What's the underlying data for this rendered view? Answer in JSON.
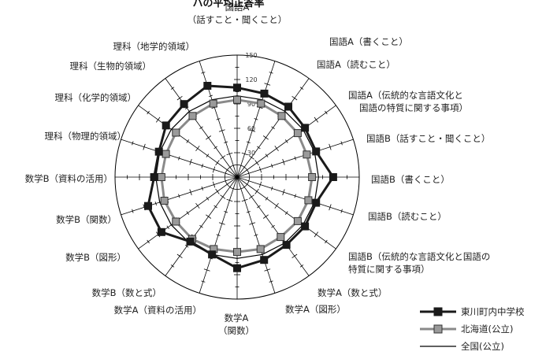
{
  "chart_data": {
    "type": "radar",
    "title": "",
    "rmax": 150,
    "ticks": [
      30,
      60,
      90,
      120,
      150
    ],
    "axes": [
      [
        "国語A",
        "（話すこと・聞くこと）"
      ],
      [
        "国語A（書くこと）"
      ],
      [
        "国語A（読むこと）"
      ],
      [
        "国語A（伝統的な言語文化と",
        "国語の特質に関する事項）"
      ],
      [
        "国語B（話すこと・聞くこと）"
      ],
      [
        "国語B（書くこと）"
      ],
      [
        "国語B（読むこと）"
      ],
      [
        "国語B（伝統的な言語文化と国語の",
        "特質に関する事項）"
      ],
      [
        "数学A（数と式）"
      ],
      [
        "数学A（図形）"
      ],
      [
        "数学A",
        "（関数）"
      ],
      [
        "数学A（資料の活用）"
      ],
      [
        "数学B（数と式）"
      ],
      [
        "数学B（図形）"
      ],
      [
        "数学B（関数）"
      ],
      [
        "数学B（資料の活用）"
      ],
      [
        "理科（物理的領域）"
      ],
      [
        "理科（化学的領域）"
      ],
      [
        "理科（生物的領域）"
      ],
      [
        "理科（地学的領域）"
      ]
    ],
    "series": [
      {
        "name": "東川町内中学校",
        "color": "#1a1a1a",
        "marker": "square-filled",
        "values": [
          110,
          108,
          107,
          103,
          102,
          118,
          102,
          103,
          103,
          107,
          112,
          100,
          98,
          115,
          115,
          102,
          101,
          108,
          111,
          118
        ]
      },
      {
        "name": "北海道(公立)",
        "color": "#8a8a8a",
        "marker": "square-gray",
        "values": [
          95,
          95,
          93,
          92,
          90,
          92,
          92,
          92,
          91,
          93,
          92,
          93,
          94,
          93,
          94,
          93,
          92,
          93,
          93,
          95
        ]
      },
      {
        "name": "全国(公立)",
        "color": "#000000",
        "marker": "none",
        "values": [
          100,
          100,
          100,
          100,
          100,
          100,
          100,
          100,
          100,
          100,
          100,
          100,
          100,
          100,
          100,
          100,
          100,
          100,
          100,
          100
        ]
      }
    ],
    "legend_position": "bottom-right"
  },
  "header_fragment": "ハの平均正答率"
}
